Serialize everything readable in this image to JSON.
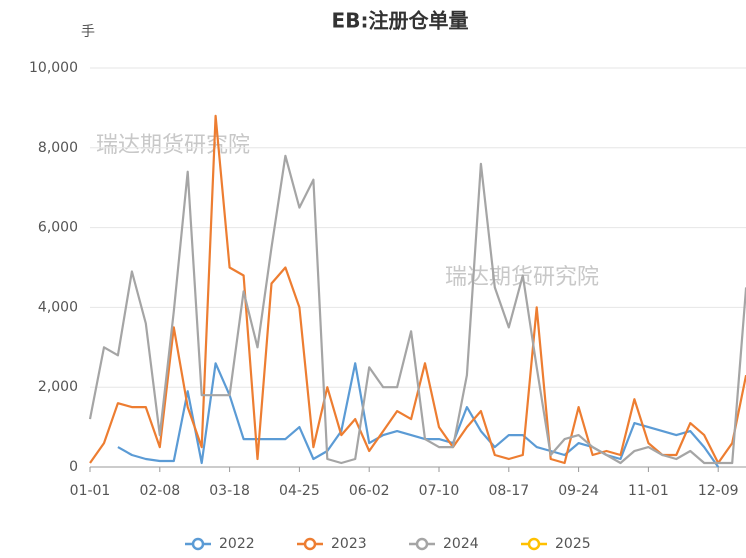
{
  "chart_data": {
    "type": "line",
    "title": "EB:注册仓单量",
    "y_unit": "手",
    "watermarks": [
      "瑞达期货研究院",
      "瑞达期货研究院"
    ],
    "categories": [
      "01-01",
      null,
      null,
      null,
      null,
      "02-08",
      null,
      null,
      null,
      null,
      "03-18",
      null,
      null,
      null,
      null,
      "04-25",
      null,
      null,
      null,
      null,
      "06-02",
      null,
      null,
      null,
      null,
      "07-10",
      null,
      null,
      null,
      null,
      "08-17",
      null,
      null,
      null,
      null,
      "09-24",
      null,
      null,
      null,
      null,
      "11-01",
      null,
      null,
      null,
      null,
      "12-09",
      null,
      null
    ],
    "ylim": [
      0,
      10000
    ],
    "yticks": [
      0,
      {
        "value": 2000,
        "label": "2,000"
      },
      {
        "value": 4000,
        "label": "4,000"
      },
      {
        "value": 6000,
        "label": "6,000"
      },
      {
        "value": 8000,
        "label": "8,000"
      },
      {
        "value": 10000,
        "label": "10,000"
      }
    ],
    "grid": true,
    "legend": "bottom",
    "series": [
      {
        "name": "2022",
        "color": "#5b9bd5",
        "values": [
          null,
          null,
          500,
          300,
          200,
          150,
          150,
          1900,
          100,
          2600,
          1800,
          700,
          700,
          700,
          700,
          1000,
          200,
          400,
          900,
          2600,
          600,
          800,
          900,
          800,
          700,
          700,
          600,
          1500,
          900,
          500,
          800,
          800,
          500,
          400,
          300,
          600,
          500,
          300,
          200,
          1100,
          1000,
          900,
          800,
          900,
          500,
          0,
          null,
          null
        ]
      },
      {
        "name": "2023",
        "color": "#ed7d31",
        "values": [
          100,
          600,
          1600,
          1500,
          1500,
          500,
          3500,
          1500,
          500,
          8800,
          5000,
          4800,
          200,
          4600,
          5000,
          4000,
          500,
          2000,
          800,
          1200,
          400,
          900,
          1400,
          1200,
          2600,
          1000,
          500,
          1000,
          1400,
          300,
          200,
          300,
          4000,
          200,
          100,
          1500,
          300,
          400,
          300,
          1700,
          600,
          300,
          300,
          1100,
          800,
          100,
          600,
          2300
        ]
      },
      {
        "name": "2024",
        "color": "#a5a5a5",
        "values": [
          1200,
          3000,
          2800,
          4900,
          3600,
          800,
          3900,
          7400,
          1800,
          1800,
          1800,
          4400,
          3000,
          5500,
          7800,
          6500,
          7200,
          200,
          100,
          200,
          2500,
          2000,
          2000,
          3400,
          700,
          500,
          500,
          2300,
          7600,
          4500,
          3500,
          4800,
          2500,
          300,
          700,
          800,
          500,
          300,
          100,
          400,
          500,
          300,
          200,
          400,
          100,
          100,
          100,
          4500
        ]
      },
      {
        "name": "2025",
        "color": "#ffc000",
        "values": [
          null,
          null,
          null,
          null,
          null,
          null,
          null,
          null,
          null,
          null,
          null,
          null,
          null,
          null,
          null,
          null,
          null,
          null,
          null,
          null,
          null,
          null,
          null,
          null,
          null,
          null,
          null,
          null,
          null,
          null,
          null,
          null,
          null,
          null,
          null,
          null,
          null,
          null,
          null,
          null,
          null,
          null,
          null,
          null,
          null,
          null,
          null,
          null
        ]
      }
    ]
  }
}
